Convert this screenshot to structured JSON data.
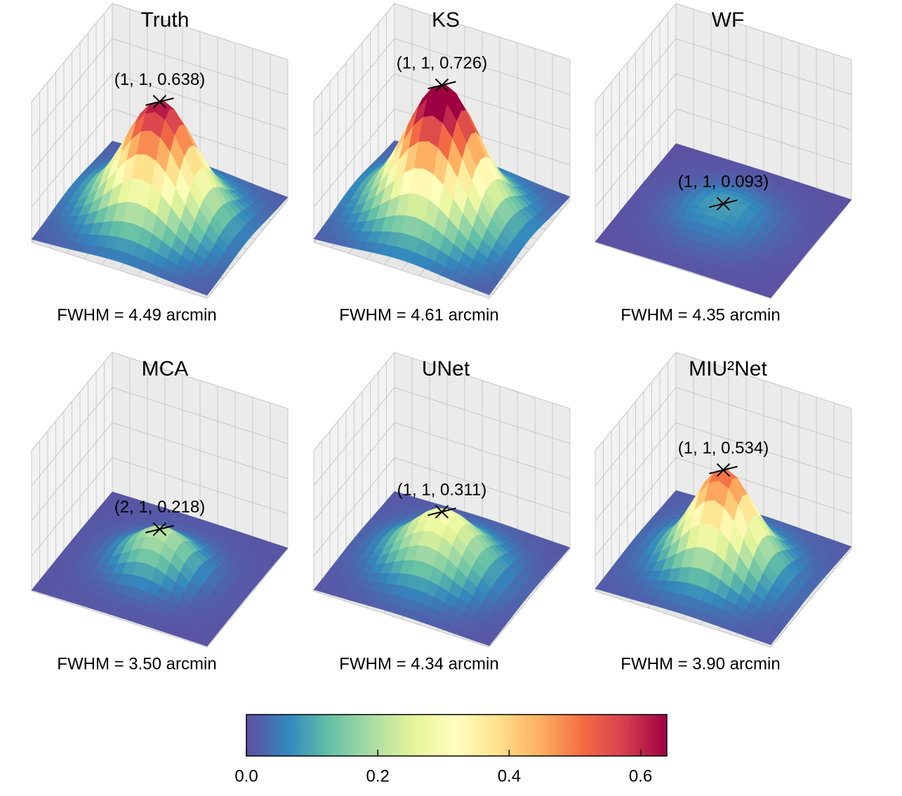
{
  "chart_data": {
    "type": "surface-grid",
    "zlim": [
      0,
      0.75
    ],
    "panels": [
      {
        "type": "surface",
        "title": "Truth",
        "peak": {
          "value": 0.638,
          "label": "(1, 1, 0.638)"
        },
        "fwhm": {
          "value": 4.49,
          "label": "FWHM = 4.49 arcmin"
        }
      },
      {
        "type": "surface",
        "title": "KS",
        "peak": {
          "value": 0.726,
          "label": "(1, 1, 0.726)"
        },
        "fwhm": {
          "value": 4.61,
          "label": "FWHM = 4.61 arcmin"
        }
      },
      {
        "type": "surface",
        "title": "WF",
        "peak": {
          "value": 0.093,
          "label": "(1, 1, 0.093)"
        },
        "fwhm": {
          "value": 4.35,
          "label": "FWHM = 4.35 arcmin"
        }
      },
      {
        "type": "surface",
        "title": "MCA",
        "peak": {
          "value": 0.218,
          "label": "(2, 1, 0.218)"
        },
        "fwhm": {
          "value": 3.5,
          "label": "FWHM = 3.50 arcmin"
        }
      },
      {
        "type": "surface",
        "title": "UNet",
        "peak": {
          "value": 0.311,
          "label": "(1, 1, 0.311)"
        },
        "fwhm": {
          "value": 4.34,
          "label": "FWHM = 4.34 arcmin"
        }
      },
      {
        "type": "surface",
        "title": "MIU²Net",
        "peak": {
          "value": 0.534,
          "label": "(1, 1, 0.534)"
        },
        "fwhm": {
          "value": 3.9,
          "label": "FWHM = 3.90 arcmin"
        }
      }
    ],
    "colorbar": {
      "clim": [
        0,
        0.64
      ],
      "colors": [
        "#5e4fa2",
        "#3288bd",
        "#66c2a5",
        "#abdda4",
        "#e6f598",
        "#ffffbf",
        "#fee08b",
        "#fdae61",
        "#f46d43",
        "#d53e4f",
        "#9e0142"
      ],
      "ticks": [
        {
          "value": 0,
          "label": "0.0"
        },
        {
          "value": 0.2,
          "label": "0.2"
        },
        {
          "value": 0.4,
          "label": "0.4"
        },
        {
          "value": 0.6,
          "label": "0.6"
        }
      ]
    }
  }
}
